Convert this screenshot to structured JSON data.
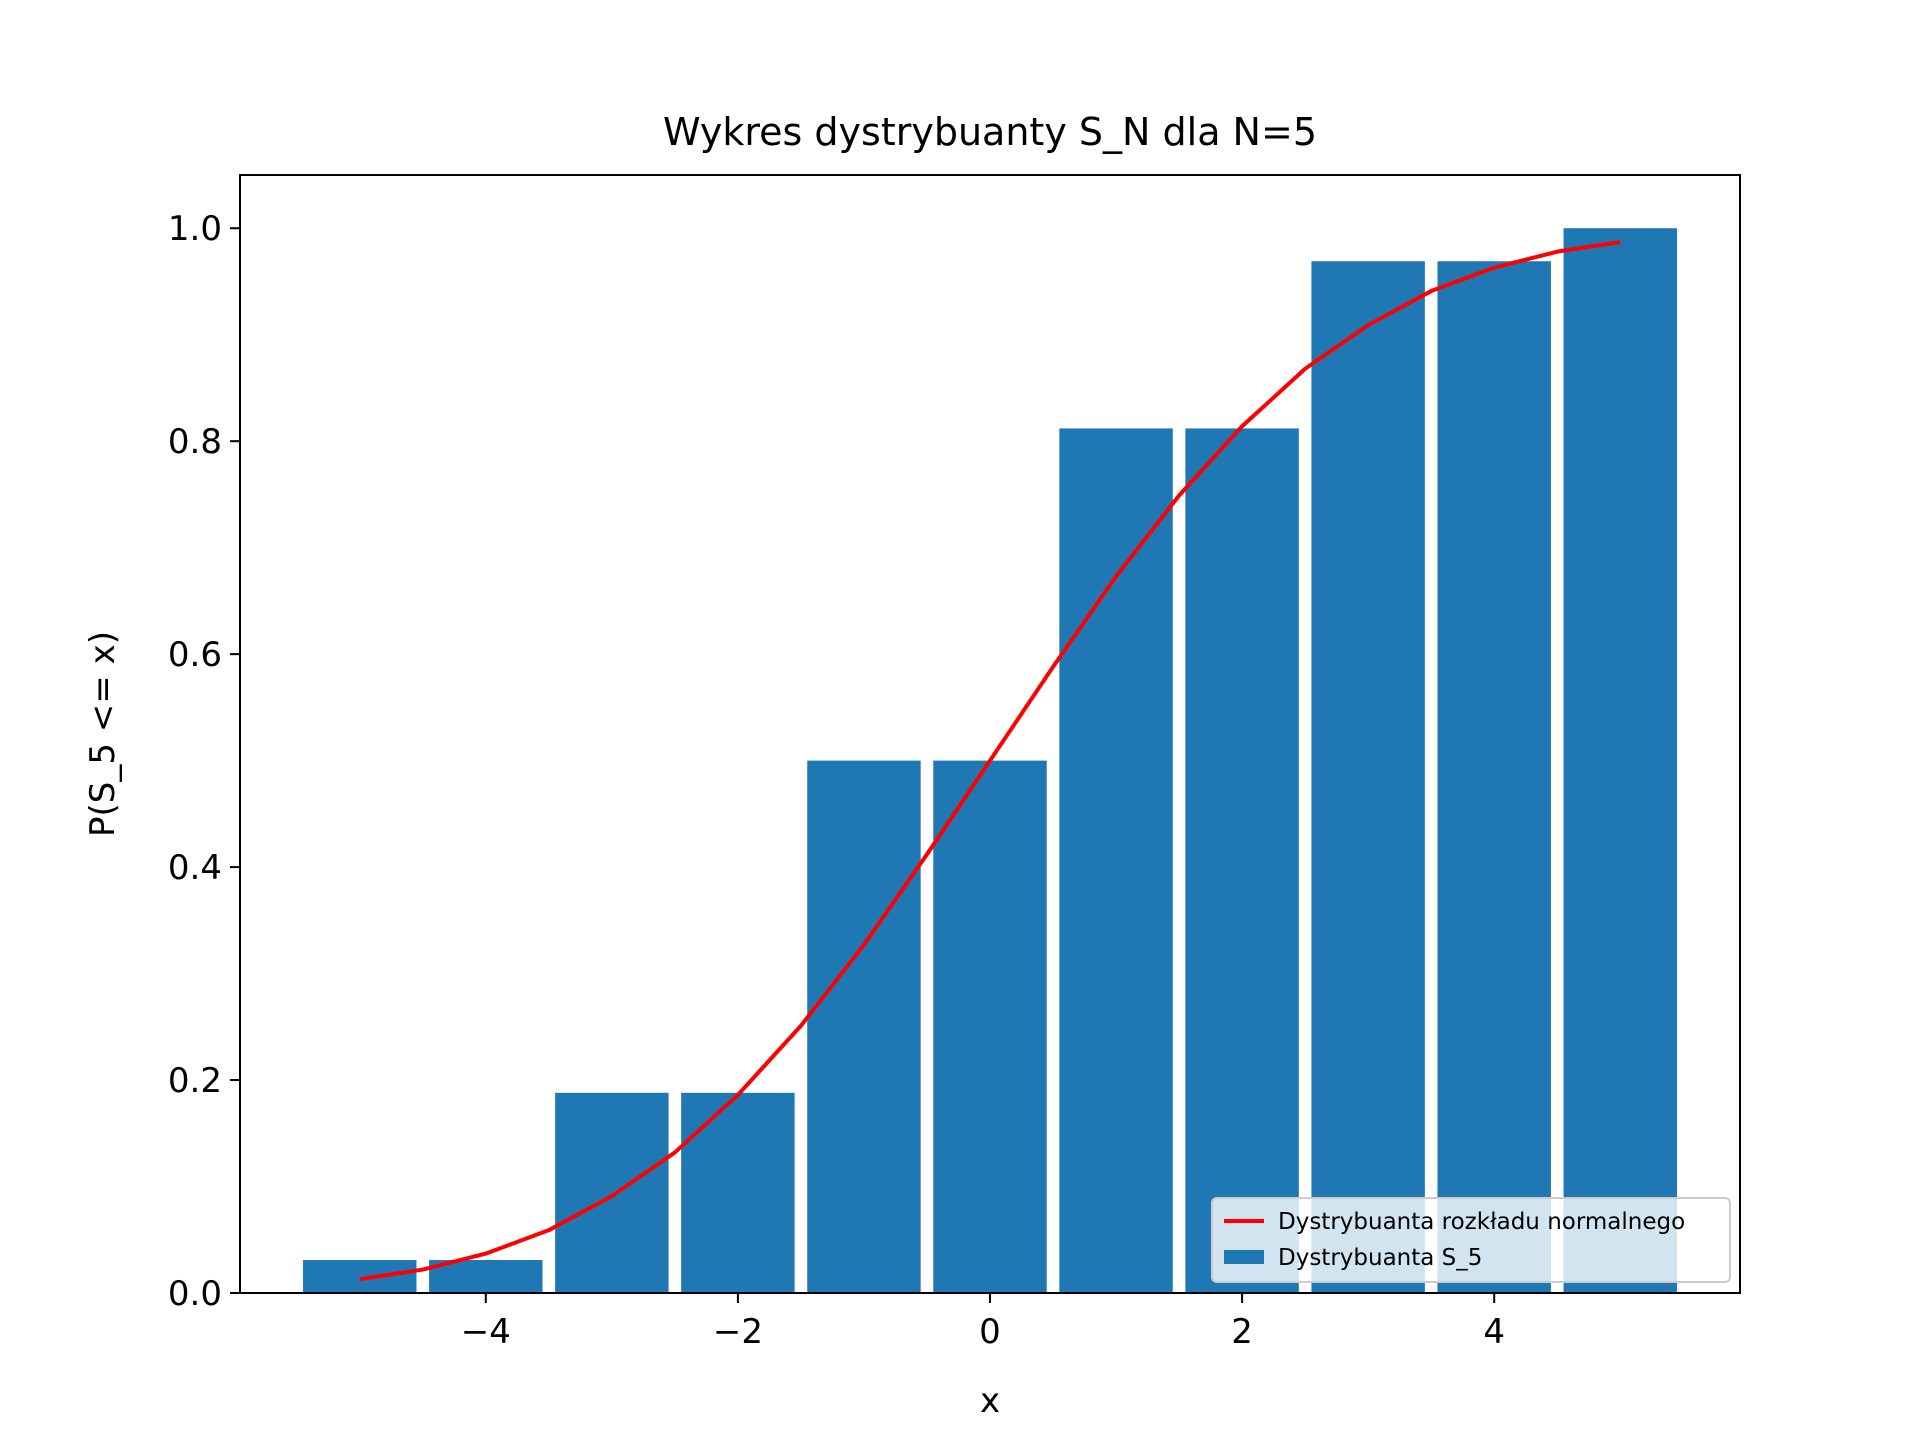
{
  "chart_data": {
    "type": "bar",
    "title": "Wykres dystrybuanty S_N dla N=5",
    "xlabel": "x",
    "ylabel": "P(S_5 <= x)",
    "xlim": [
      -5.95,
      5.95
    ],
    "ylim": [
      0,
      1.05
    ],
    "x_ticks": [
      -4,
      -2,
      0,
      2,
      4
    ],
    "x_tick_labels": [
      "−4",
      "−2",
      "0",
      "2",
      "4"
    ],
    "y_ticks": [
      0.0,
      0.2,
      0.4,
      0.6,
      0.8,
      1.0
    ],
    "y_tick_labels": [
      "0.0",
      "0.2",
      "0.4",
      "0.6",
      "0.8",
      "1.0"
    ],
    "bar_width": 0.9,
    "series": [
      {
        "name": "Dystrybuanta S_5",
        "type": "bar",
        "color": "#1f77b4",
        "x": [
          -5,
          -4,
          -3,
          -2,
          -1,
          0,
          1,
          2,
          3,
          4,
          5
        ],
        "values": [
          0.031,
          0.031,
          0.188,
          0.188,
          0.5,
          0.5,
          0.812,
          0.812,
          0.969,
          0.969,
          1.0
        ]
      },
      {
        "name": "Dystrybuanta rozkładu normalnego",
        "type": "line",
        "color": "#ff0000",
        "x": [
          -5,
          -4.5,
          -4,
          -3.5,
          -3,
          -2.5,
          -2,
          -1.5,
          -1,
          -0.5,
          0,
          0.5,
          1,
          1.5,
          2,
          2.5,
          3,
          3.5,
          4,
          4.5,
          5
        ],
        "values": [
          0.013,
          0.022,
          0.037,
          0.059,
          0.091,
          0.132,
          0.186,
          0.251,
          0.327,
          0.412,
          0.5,
          0.588,
          0.673,
          0.749,
          0.814,
          0.868,
          0.909,
          0.941,
          0.963,
          0.978,
          0.987
        ]
      }
    ],
    "legend": {
      "placement": "lower-right",
      "entries": [
        "Dystrybuanta rozkładu normalnego",
        "Dystrybuanta S_5"
      ]
    },
    "grid": false
  }
}
